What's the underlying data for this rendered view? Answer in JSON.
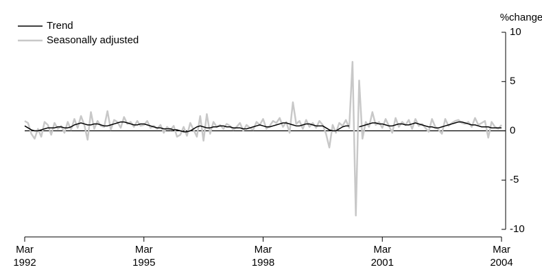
{
  "chart_data": {
    "type": "line",
    "y_label": "%change",
    "categories": [
      "Mar\n1992",
      null,
      null,
      null,
      null,
      null,
      null,
      null,
      null,
      null,
      null,
      null,
      null,
      null,
      null,
      null,
      null,
      null,
      null,
      null,
      null,
      null,
      null,
      null,
      null,
      null,
      null,
      null,
      null,
      null,
      null,
      null,
      null,
      null,
      null,
      null,
      "Mar\n1995",
      null,
      null,
      null,
      null,
      null,
      null,
      null,
      null,
      null,
      null,
      null,
      null,
      null,
      null,
      null,
      null,
      null,
      null,
      null,
      null,
      null,
      null,
      null,
      null,
      null,
      null,
      null,
      null,
      null,
      null,
      null,
      null,
      null,
      null,
      null,
      "Mar\n1998",
      null,
      null,
      null,
      null,
      null,
      null,
      null,
      null,
      null,
      null,
      null,
      null,
      null,
      null,
      null,
      null,
      null,
      null,
      null,
      null,
      null,
      null,
      null,
      null,
      null,
      null,
      null,
      null,
      null,
      null,
      null,
      null,
      null,
      null,
      null,
      "Mar\n2001",
      null,
      null,
      null,
      null,
      null,
      null,
      null,
      null,
      null,
      null,
      null,
      null,
      null,
      null,
      null,
      null,
      null,
      null,
      null,
      null,
      null,
      null,
      null,
      null,
      null,
      null,
      null,
      null,
      null,
      null,
      null,
      null,
      null,
      null,
      null,
      "Mar\n2004"
    ],
    "series": [
      {
        "name": "Trend",
        "color": "#000000",
        "values": [
          0.5,
          0.3,
          0.1,
          0.0,
          0.0,
          0.1,
          0.2,
          0.3,
          0.3,
          0.3,
          0.4,
          0.4,
          0.3,
          0.3,
          0.4,
          0.6,
          0.7,
          0.8,
          0.7,
          0.6,
          0.6,
          0.7,
          0.7,
          0.6,
          0.5,
          0.5,
          0.6,
          0.7,
          0.8,
          0.9,
          0.9,
          0.8,
          0.7,
          0.6,
          0.6,
          0.7,
          0.7,
          0.6,
          0.5,
          0.4,
          0.3,
          0.3,
          0.2,
          0.2,
          0.2,
          0.1,
          0.1,
          0.0,
          -0.1,
          -0.1,
          0.0,
          0.2,
          0.4,
          0.5,
          0.4,
          0.3,
          0.3,
          0.4,
          0.4,
          0.5,
          0.5,
          0.4,
          0.4,
          0.3,
          0.3,
          0.3,
          0.2,
          0.2,
          0.3,
          0.4,
          0.5,
          0.6,
          0.5,
          0.4,
          0.4,
          0.5,
          0.6,
          0.7,
          0.8,
          0.8,
          0.7,
          0.6,
          0.5,
          0.5,
          0.6,
          0.7,
          0.7,
          0.6,
          0.5,
          0.5,
          0.5,
          0.3,
          0.1,
          0.0,
          0.0,
          0.2,
          0.4,
          0.5,
          0.5,
          null,
          null,
          0.4,
          0.5,
          0.6,
          0.7,
          0.8,
          0.8,
          0.7,
          0.7,
          0.6,
          0.5,
          0.5,
          0.6,
          0.7,
          0.7,
          0.6,
          0.6,
          0.7,
          0.8,
          0.7,
          0.6,
          0.5,
          0.4,
          0.4,
          0.3,
          0.3,
          0.4,
          0.5,
          0.6,
          0.7,
          0.8,
          0.9,
          0.9,
          0.8,
          0.7,
          0.6,
          0.6,
          0.5,
          0.4,
          0.4,
          0.4,
          0.3,
          0.3,
          0.3,
          0.3
        ]
      },
      {
        "name": "Seasonally adjusted",
        "color": "#c8c8c8",
        "values": [
          1.0,
          0.8,
          -0.3,
          -0.8,
          0.2,
          -0.6,
          0.9,
          0.6,
          -0.4,
          0.8,
          0.2,
          0.5,
          -0.2,
          0.9,
          0.1,
          1.2,
          0.3,
          1.5,
          0.6,
          -0.9,
          1.9,
          0.2,
          1.0,
          0.5,
          0.4,
          2.0,
          0.1,
          1.1,
          0.9,
          0.3,
          1.4,
          0.7,
          0.9,
          0.4,
          1.0,
          0.5,
          0.6,
          1.0,
          0.3,
          0.5,
          0.2,
          0.6,
          -0.2,
          0.4,
          0.1,
          0.5,
          -0.6,
          -0.4,
          0.4,
          -0.5,
          0.8,
          0.1,
          -0.6,
          1.5,
          -1.0,
          1.7,
          -0.3,
          0.9,
          0.4,
          0.6,
          0.2,
          0.7,
          0.5,
          0.1,
          0.4,
          0.8,
          0.0,
          0.6,
          0.3,
          0.1,
          0.9,
          0.6,
          1.2,
          0.2,
          0.5,
          1.0,
          0.8,
          1.3,
          0.4,
          0.9,
          -0.2,
          2.9,
          0.7,
          1.0,
          0.2,
          1.1,
          0.4,
          0.8,
          0.3,
          1.0,
          0.6,
          -0.3,
          -1.7,
          0.6,
          -0.2,
          0.8,
          0.5,
          1.1,
          0.3,
          7.0,
          -8.6,
          5.1,
          -0.8,
          0.9,
          0.4,
          1.9,
          0.6,
          0.9,
          0.3,
          1.2,
          0.5,
          -0.2,
          1.3,
          0.4,
          0.9,
          0.6,
          1.1,
          0.2,
          1.2,
          0.5,
          0.7,
          0.3,
          -0.1,
          1.2,
          0.4,
          0.1,
          -0.3,
          1.2,
          0.5,
          0.8,
          1.0,
          1.1,
          0.8,
          0.7,
          0.9,
          0.4,
          1.3,
          0.6,
          0.8,
          1.0,
          -0.7,
          0.9,
          0.4,
          0.2,
          0.6
        ]
      }
    ],
    "ylim": [
      -10,
      10
    ],
    "yticks": [
      -10,
      -5,
      0,
      5,
      10
    ],
    "zero_line": true
  }
}
